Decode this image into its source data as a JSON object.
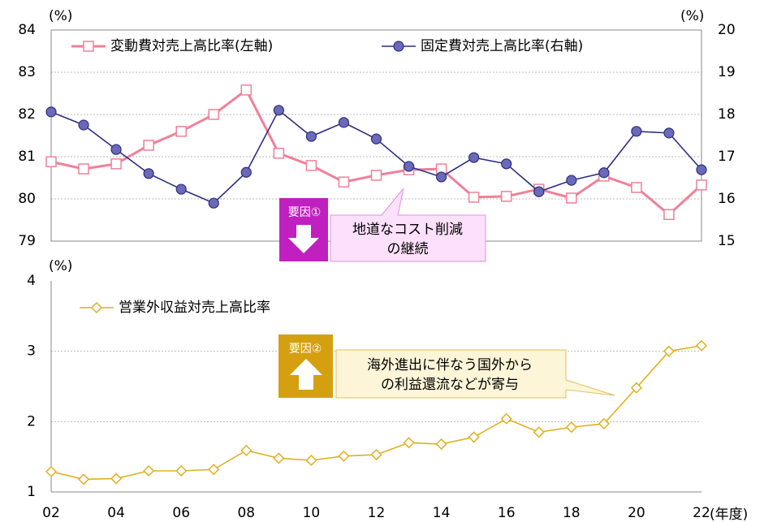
{
  "chart_data": [
    {
      "type": "line",
      "ylabel": "(%)",
      "y2label": "(%)",
      "ylim": [
        79,
        84
      ],
      "yticks": [
        79,
        80,
        81,
        82,
        83,
        84
      ],
      "y2lim": [
        15,
        20
      ],
      "y2ticks": [
        15,
        16,
        17,
        18,
        19,
        20
      ],
      "grid": true,
      "series": [
        {
          "name": "変動費対売上高比率(左軸)",
          "color": "#f08098",
          "marker": "square",
          "values": [
            80.88,
            80.71,
            80.83,
            81.27,
            81.6,
            82.0,
            82.58,
            81.08,
            80.79,
            80.4,
            80.56,
            80.69,
            80.71,
            80.04,
            80.06,
            80.23,
            80.02,
            80.54,
            80.27,
            79.63,
            80.33
          ]
        },
        {
          "name": "固定費対売上高比率(右軸)",
          "color": "#2e2e80",
          "marker": "circle",
          "axis": "y2",
          "values": [
            18.06,
            17.75,
            17.17,
            16.6,
            16.23,
            15.9,
            16.63,
            18.1,
            17.48,
            17.81,
            17.42,
            16.77,
            16.52,
            16.98,
            16.83,
            16.17,
            16.44,
            16.62,
            17.6,
            17.56,
            16.69
          ]
        }
      ],
      "annotation": {
        "badge": "要因①",
        "color": "#c020c0",
        "text": [
          "地道なコスト削減",
          "の継続"
        ]
      }
    },
    {
      "type": "line",
      "ylabel": "(%)",
      "xlabel": "(年度)",
      "categories": [
        "02",
        null,
        "04",
        null,
        "06",
        null,
        "08",
        null,
        "10",
        null,
        "12",
        null,
        "14",
        null,
        "16",
        null,
        "18",
        null,
        "20",
        null,
        "22"
      ],
      "ylim": [
        1,
        4
      ],
      "yticks": [
        1,
        2,
        3,
        4
      ],
      "grid": true,
      "series": [
        {
          "name": "営業外収益対売上高比率",
          "color": "#e0b020",
          "marker": "diamond",
          "values": [
            1.29,
            1.18,
            1.19,
            1.3,
            1.3,
            1.32,
            1.59,
            1.48,
            1.45,
            1.51,
            1.53,
            1.7,
            1.68,
            1.78,
            2.04,
            1.85,
            1.92,
            1.97,
            2.48,
            3.0,
            3.08
          ]
        }
      ],
      "annotation": {
        "badge": "要因②",
        "color": "#d4a010",
        "text": [
          "海外進出に伴なう国外から",
          "の利益還流などが寄与"
        ]
      }
    }
  ]
}
